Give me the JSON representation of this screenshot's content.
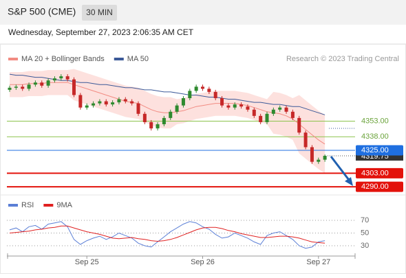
{
  "header": {
    "title": "S&P 500 (CME)",
    "interval": "30 MIN",
    "datetime": "Wednesday, September 27, 2023 2:06:35 AM CET"
  },
  "chart_data": [
    {
      "type": "candlestick",
      "source": "Research © 2023 Trading Central",
      "up_color": "#2f8a2f",
      "down_color": "#c62828",
      "open": [
        4383,
        4385,
        4386,
        4384,
        4388,
        4390,
        4387,
        4392,
        4394,
        4396,
        4393,
        4378,
        4366,
        4368,
        4370,
        4372,
        4369,
        4371,
        4374,
        4372,
        4370,
        4360,
        4352,
        4346,
        4350,
        4356,
        4362,
        4368,
        4375,
        4382,
        4386,
        4384,
        4381,
        4375,
        4368,
        4366,
        4369,
        4367,
        4364,
        4358,
        4352,
        4360,
        4364,
        4366,
        4362,
        4356,
        4342,
        4328,
        4314,
        4316
      ],
      "high": [
        4387,
        4388,
        4388,
        4390,
        4392,
        4392,
        4394,
        4396,
        4398,
        4398,
        4395,
        4380,
        4370,
        4372,
        4374,
        4374,
        4373,
        4376,
        4376,
        4374,
        4372,
        4362,
        4354,
        4352,
        4358,
        4364,
        4370,
        4377,
        4384,
        4388,
        4388,
        4386,
        4383,
        4377,
        4370,
        4371,
        4371,
        4369,
        4366,
        4360,
        4362,
        4366,
        4368,
        4368,
        4364,
        4358,
        4344,
        4330,
        4318,
        4321
      ],
      "low": [
        4381,
        4383,
        4382,
        4382,
        4386,
        4385,
        4385,
        4390,
        4392,
        4391,
        4376,
        4364,
        4364,
        4366,
        4368,
        4367,
        4367,
        4369,
        4370,
        4368,
        4358,
        4350,
        4344,
        4344,
        4348,
        4354,
        4360,
        4366,
        4373,
        4380,
        4382,
        4379,
        4373,
        4366,
        4364,
        4364,
        4365,
        4362,
        4356,
        4350,
        4350,
        4358,
        4362,
        4360,
        4354,
        4340,
        4326,
        4312,
        4312,
        4314
      ],
      "close": [
        4385,
        4386,
        4384,
        4388,
        4390,
        4387,
        4392,
        4394,
        4396,
        4393,
        4378,
        4366,
        4368,
        4370,
        4372,
        4369,
        4371,
        4374,
        4372,
        4370,
        4360,
        4352,
        4346,
        4350,
        4356,
        4362,
        4368,
        4375,
        4382,
        4386,
        4384,
        4381,
        4375,
        4368,
        4366,
        4369,
        4367,
        4364,
        4358,
        4352,
        4360,
        4364,
        4366,
        4362,
        4356,
        4342,
        4328,
        4314,
        4316,
        4319.75
      ],
      "series": [
        {
          "name": "MA 20 + Bollinger Bands",
          "color": "#f28b82",
          "band_color": "#fcd9d6",
          "values": [
            4388,
            4388,
            4388,
            4389,
            4389,
            4389,
            4390,
            4390,
            4390,
            4390,
            4388,
            4386,
            4384,
            4382,
            4380,
            4378,
            4376,
            4374,
            4372,
            4371,
            4370,
            4367,
            4364,
            4362,
            4361,
            4361,
            4362,
            4363,
            4365,
            4367,
            4368,
            4369,
            4370,
            4370,
            4370,
            4370,
            4369,
            4368,
            4366,
            4364,
            4362,
            4361,
            4360,
            4358,
            4355,
            4350,
            4345,
            4340,
            4335,
            4331
          ],
          "upper": [
            4400,
            4400,
            4400,
            4401,
            4401,
            4401,
            4402,
            4402,
            4402,
            4402,
            4403,
            4401,
            4399,
            4397,
            4395,
            4393,
            4391,
            4389,
            4387,
            4386,
            4385,
            4382,
            4379,
            4377,
            4376,
            4376,
            4374,
            4375,
            4377,
            4379,
            4380,
            4381,
            4382,
            4382,
            4382,
            4382,
            4381,
            4380,
            4378,
            4376,
            4374,
            4381,
            4380,
            4378,
            4375,
            4378,
            4373,
            4368,
            4363,
            4359
          ],
          "lower": [
            4376,
            4376,
            4376,
            4377,
            4377,
            4377,
            4378,
            4378,
            4378,
            4378,
            4373,
            4371,
            4369,
            4367,
            4365,
            4363,
            4361,
            4359,
            4357,
            4356,
            4355,
            4352,
            4349,
            4347,
            4346,
            4346,
            4350,
            4351,
            4353,
            4355,
            4356,
            4357,
            4358,
            4358,
            4358,
            4358,
            4357,
            4356,
            4354,
            4352,
            4350,
            4341,
            4340,
            4338,
            4335,
            4322,
            4317,
            4312,
            4307,
            4303
          ]
        },
        {
          "name": "MA 50",
          "color": "#3b5998",
          "values": [
            4398,
            4397,
            4397,
            4396,
            4395,
            4395,
            4394,
            4393,
            4392,
            4392,
            4391,
            4390,
            4390,
            4389,
            4388,
            4388,
            4387,
            4386,
            4385,
            4385,
            4384,
            4383,
            4383,
            4382,
            4381,
            4381,
            4380,
            4379,
            4378,
            4378,
            4377,
            4376,
            4376,
            4375,
            4374,
            4374,
            4373,
            4372,
            4371,
            4371,
            4370,
            4369,
            4369,
            4368,
            4367,
            4367,
            4365,
            4363,
            4361,
            4359
          ]
        }
      ],
      "levels": [
        {
          "value": 4353,
          "label": "4353.00",
          "color": "#8bc34a",
          "style": "text"
        },
        {
          "value": 4338,
          "label": "4338.00",
          "color": "#8bc34a",
          "style": "text"
        },
        {
          "value": 4325,
          "label": "4325.00",
          "color": "#1f6fe0",
          "style": "box"
        },
        {
          "value": 4303,
          "label": "4303.00",
          "color": "#e3120b",
          "style": "box"
        },
        {
          "value": 4290,
          "label": "4290.00",
          "color": "#e3120b",
          "style": "box"
        }
      ],
      "last": {
        "value": 4319.75,
        "label": "4319.75"
      },
      "ylim": [
        4283,
        4407
      ]
    },
    {
      "type": "line",
      "categories": [
        null,
        null,
        null,
        null,
        null,
        null,
        null,
        null,
        null,
        null,
        null,
        null,
        "Sep 25",
        null,
        null,
        null,
        null,
        null,
        null,
        null,
        null,
        null,
        null,
        null,
        null,
        null,
        null,
        null,
        null,
        null,
        "Sep 26",
        null,
        null,
        null,
        null,
        null,
        null,
        null,
        null,
        null,
        null,
        null,
        null,
        null,
        null,
        null,
        null,
        null,
        "Sep 27",
        null
      ],
      "series": [
        {
          "name": "RSI",
          "color": "#5b7fd6",
          "values": [
            55,
            58,
            52,
            60,
            62,
            56,
            64,
            66,
            68,
            60,
            40,
            32,
            38,
            42,
            45,
            40,
            44,
            50,
            46,
            42,
            34,
            30,
            28,
            36,
            44,
            52,
            58,
            64,
            68,
            66,
            60,
            56,
            48,
            42,
            44,
            50,
            46,
            42,
            36,
            32,
            46,
            50,
            52,
            46,
            40,
            30,
            26,
            28,
            36,
            38
          ]
        },
        {
          "name": "9MA",
          "color": "#e02020",
          "values": [
            50,
            51,
            52,
            53,
            55,
            56,
            58,
            59,
            61,
            61,
            58,
            55,
            52,
            50,
            48,
            45,
            42,
            41,
            42,
            43,
            41,
            40,
            38,
            37,
            38,
            40,
            43,
            47,
            51,
            55,
            58,
            59,
            59,
            57,
            54,
            52,
            49,
            47,
            45,
            43,
            43,
            44,
            45,
            45,
            44,
            42,
            39,
            36,
            35,
            34
          ]
        }
      ],
      "ylim": [
        14,
        82
      ],
      "yticks": [
        30,
        50,
        70
      ],
      "grid": true
    }
  ]
}
